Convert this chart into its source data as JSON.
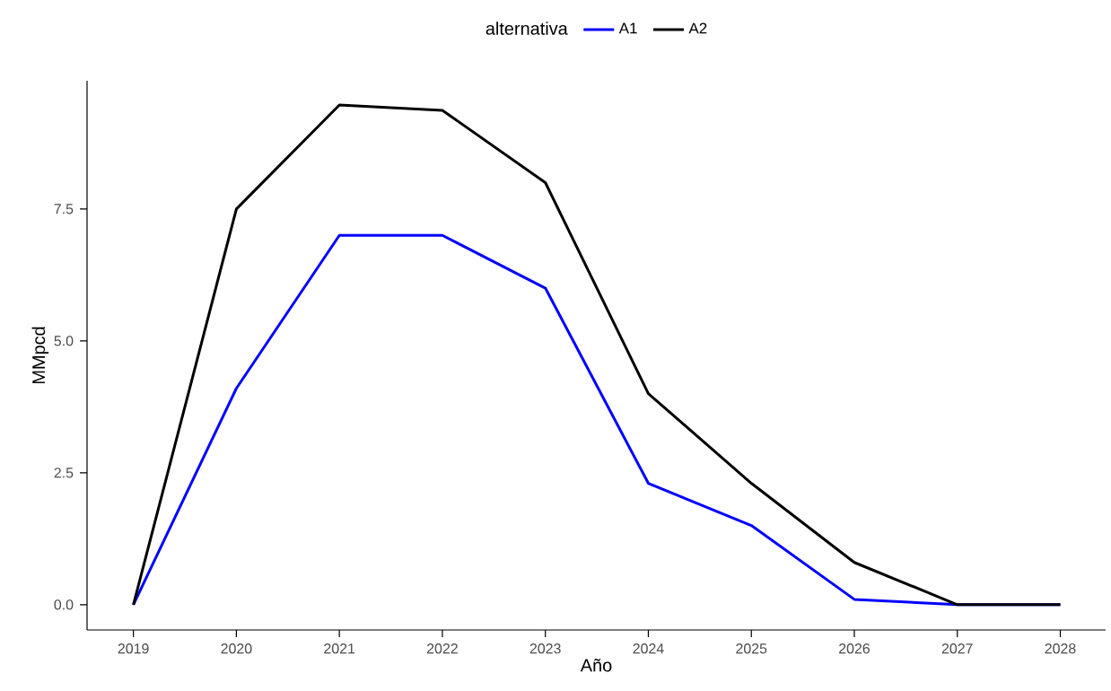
{
  "chart_data": {
    "type": "line",
    "xlabel": "Año",
    "ylabel": "MMpcd",
    "legend_title": "alternativa",
    "legend": "top",
    "x": [
      2019,
      2020,
      2021,
      2022,
      2023,
      2024,
      2025,
      2026,
      2027,
      2028
    ],
    "series": [
      {
        "name": "A1",
        "color": "#0000ff",
        "values": [
          0,
          4.1,
          7.0,
          7.0,
          6.0,
          2.3,
          1.5,
          0.1,
          0,
          0
        ]
      },
      {
        "name": "A2",
        "color": "#000000",
        "values": [
          0,
          7.5,
          9.47,
          9.37,
          8.0,
          4.0,
          2.3,
          0.8,
          0,
          0
        ]
      }
    ],
    "xlim": [
      2018.55,
      2028.44
    ],
    "ylim": [
      -0.48,
      9.93
    ],
    "xticks": [
      2019,
      2020,
      2021,
      2022,
      2023,
      2024,
      2025,
      2026,
      2027,
      2028
    ],
    "yticks": [
      {
        "value": 0,
        "label": "0.0"
      },
      2.5,
      {
        "value": 5,
        "label": "5.0"
      },
      7.5
    ]
  }
}
